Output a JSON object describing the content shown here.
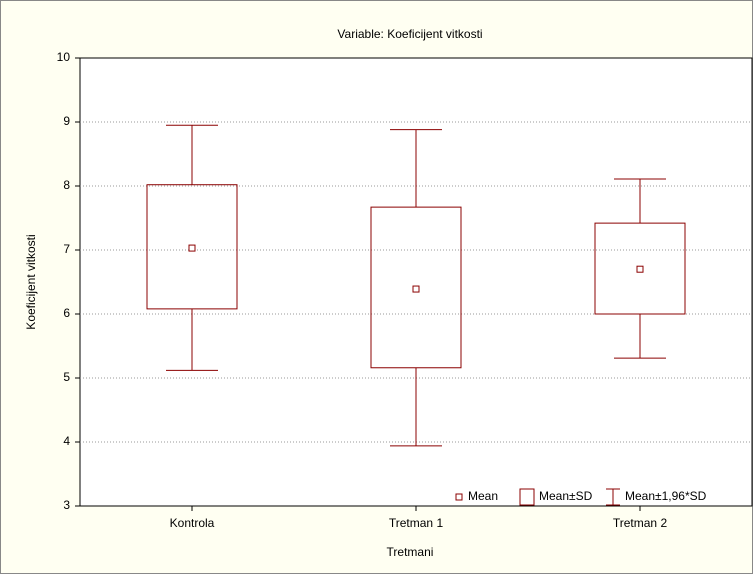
{
  "chart_data": {
    "type": "box",
    "title": "Variable: Koeficijent vitkosti",
    "x_label": "Tretmani",
    "y_label": "Koeficijent vitkosti",
    "categories": [
      "Kontrola",
      "Tretman 1",
      "Tretman 2"
    ],
    "mean": [
      7.03,
      6.39,
      6.7
    ],
    "sd_low": [
      6.08,
      5.16,
      6.0
    ],
    "sd_high": [
      8.02,
      7.67,
      7.42
    ],
    "ci_low": [
      5.12,
      3.94,
      5.31
    ],
    "ci_high": [
      8.95,
      8.88,
      8.11
    ],
    "legend": [
      "Mean",
      "Mean±SD",
      "Mean±1,96*SD"
    ],
    "color": "#8b0000",
    "ylim": [
      3,
      10
    ],
    "yticks": [
      3,
      4,
      5,
      6,
      7,
      8,
      9,
      10
    ],
    "grid": true
  }
}
